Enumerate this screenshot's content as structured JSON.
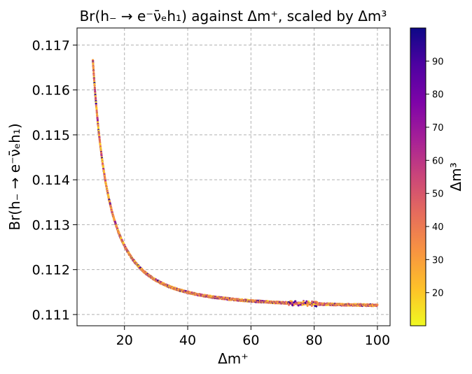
{
  "chart_data": {
    "type": "scatter",
    "title": "Br(h₋ → e⁻ν̄ₑh₁) against Δm⁺, scaled by Δm³",
    "xlabel": "Δm⁺",
    "ylabel": "Br(h₋ → e⁻ν̄ₑh₁)",
    "xlim": [
      5,
      104
    ],
    "ylim": [
      0.11075,
      0.11738
    ],
    "xticks": [
      20,
      40,
      60,
      80,
      100
    ],
    "yticks": [
      0.111,
      0.112,
      0.113,
      0.114,
      0.115,
      0.116,
      0.117
    ],
    "grid": true,
    "colorbar": {
      "label": "Δm³",
      "colormap": "plasma",
      "range": [
        10,
        100
      ],
      "ticks": [
        20,
        30,
        40,
        50,
        60,
        70,
        80,
        90
      ]
    },
    "curve": {
      "description": "dense points along Br = 0.11115 + 0.552 / (Δm⁺)^2",
      "x": [
        10,
        11,
        12,
        13,
        14,
        15,
        16,
        18,
        20,
        22,
        25,
        28,
        30,
        35,
        40,
        45,
        50,
        55,
        60,
        65,
        70,
        75,
        80,
        85,
        90,
        95,
        100
      ],
      "y": [
        0.1167,
        0.1157,
        0.115,
        0.1144,
        0.114,
        0.1136,
        0.1133,
        0.1129,
        0.1125,
        0.1123,
        0.112,
        0.1119,
        0.1118,
        0.1116,
        0.1115,
        0.1114,
        0.1114,
        0.1113,
        0.1113,
        0.1113,
        0.1112,
        0.1112,
        0.1112,
        0.1112,
        0.1112,
        0.1112,
        0.1112
      ]
    }
  }
}
